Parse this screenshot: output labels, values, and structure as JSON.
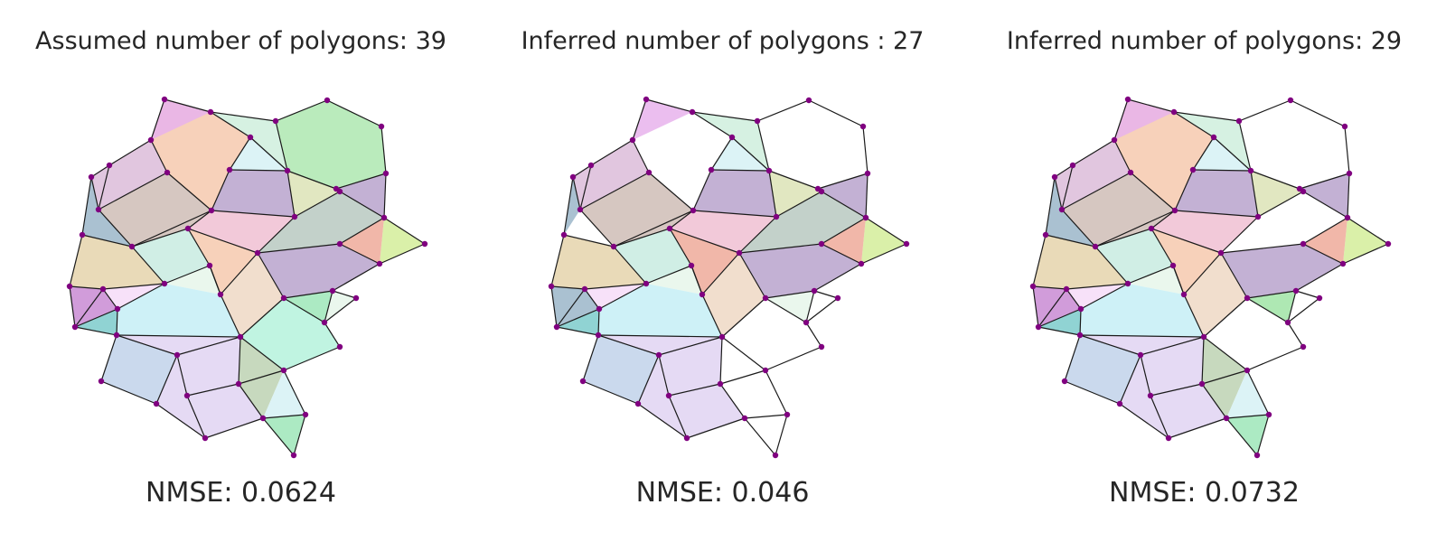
{
  "panels": [
    {
      "title": "Assumed number of polygons: 39",
      "metric": "NMSE: 0.0624"
    },
    {
      "title": "Inferred number of polygons : 27",
      "metric": "NMSE: 0.046"
    },
    {
      "title": "Inferred number of polygons: 29",
      "metric": "NMSE: 0.0732"
    }
  ],
  "colors": {
    "vertex": "#800080",
    "edge": "#1a1a1a",
    "text": "#262626"
  }
}
